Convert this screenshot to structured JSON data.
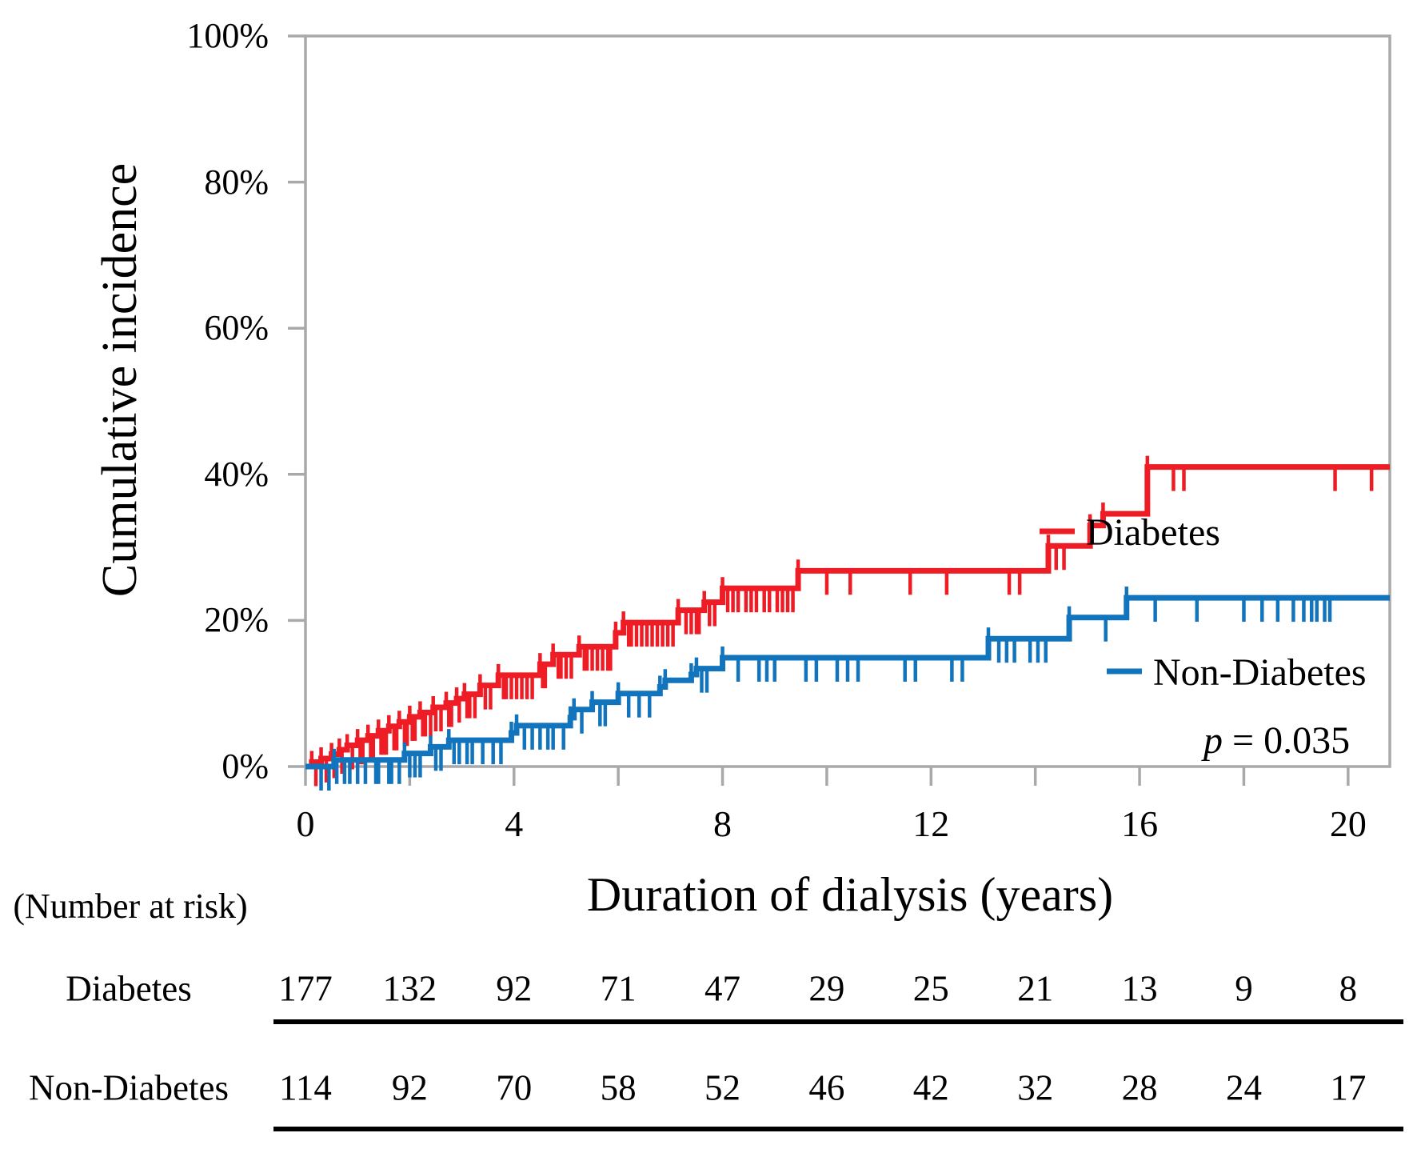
{
  "chart_data": {
    "type": "line",
    "subtype": "kaplan-meier-cumulative-incidence-step",
    "title": "",
    "xlabel": "Duration of dialysis (years)",
    "ylabel": "Cumulative incidence",
    "xlim": [
      0,
      20.8
    ],
    "ylim": [
      0,
      100
    ],
    "grid": false,
    "axis_color": "#a9a9a9",
    "x_ticks_labeled": [
      0,
      4,
      8,
      12,
      16,
      20
    ],
    "x_ticks_minor": [
      0,
      2,
      4,
      6,
      8,
      10,
      12,
      14,
      16,
      18,
      20
    ],
    "y_ticks": [
      0,
      20,
      40,
      60,
      80,
      100
    ],
    "y_tick_labels": [
      "0%",
      "20%",
      "40%",
      "60%",
      "80%",
      "100%"
    ],
    "legend_position": "inside-right",
    "p_label": "p",
    "p_value": "= 0.035",
    "series": [
      {
        "name": "Diabetes",
        "color": "#ee1c25",
        "steps": [
          [
            0,
            0
          ],
          [
            0.12,
            0.6
          ],
          [
            0.3,
            1.1
          ],
          [
            0.5,
            1.7
          ],
          [
            0.65,
            2.3
          ],
          [
            0.8,
            2.9
          ],
          [
            1.0,
            3.6
          ],
          [
            1.2,
            4.2
          ],
          [
            1.4,
            4.9
          ],
          [
            1.6,
            5.5
          ],
          [
            1.8,
            6.1
          ],
          [
            2.0,
            6.8
          ],
          [
            2.2,
            7.4
          ],
          [
            2.45,
            8.1
          ],
          [
            2.7,
            8.7
          ],
          [
            2.9,
            9.3
          ],
          [
            3.05,
            9.9
          ],
          [
            3.35,
            11.1
          ],
          [
            3.7,
            12.5
          ],
          [
            4.5,
            14.0
          ],
          [
            4.75,
            15.3
          ],
          [
            5.25,
            16.4
          ],
          [
            5.95,
            18.3
          ],
          [
            6.1,
            19.7
          ],
          [
            7.15,
            21.4
          ],
          [
            7.65,
            22.5
          ],
          [
            8.0,
            24.4
          ],
          [
            9.45,
            26.8
          ],
          [
            14.25,
            30.2
          ],
          [
            15.05,
            33.0
          ],
          [
            15.3,
            34.6
          ],
          [
            16.15,
            41.0
          ]
        ],
        "end_value": 41.0,
        "censor_times": [
          0.2,
          0.4,
          0.55,
          0.7,
          0.9,
          1.05,
          1.1,
          1.25,
          1.3,
          1.45,
          1.5,
          1.55,
          1.7,
          1.75,
          1.9,
          1.95,
          2.05,
          2.1,
          2.25,
          2.3,
          2.4,
          2.5,
          2.6,
          2.75,
          2.8,
          2.95,
          3.1,
          3.15,
          3.25,
          3.45,
          3.55,
          3.8,
          3.85,
          3.95,
          4.05,
          4.15,
          4.25,
          4.35,
          4.55,
          4.6,
          4.85,
          4.9,
          5.0,
          5.1,
          5.35,
          5.4,
          5.5,
          5.6,
          5.7,
          5.8,
          5.85,
          6.2,
          6.25,
          6.35,
          6.45,
          6.55,
          6.65,
          6.75,
          6.85,
          6.95,
          7.05,
          7.3,
          7.4,
          7.5,
          7.55,
          7.75,
          7.85,
          8.1,
          8.2,
          8.3,
          8.45,
          8.55,
          8.65,
          8.8,
          8.9,
          9.05,
          9.15,
          9.25,
          9.35,
          10.0,
          10.45,
          11.6,
          12.3,
          13.5,
          13.7,
          14.4,
          14.55,
          16.65,
          16.85,
          19.75,
          20.45
        ]
      },
      {
        "name": "Non-Diabetes",
        "color": "#1174bc",
        "steps": [
          [
            0,
            0
          ],
          [
            0.55,
            0.9
          ],
          [
            1.9,
            1.8
          ],
          [
            2.4,
            2.7
          ],
          [
            2.75,
            3.6
          ],
          [
            3.95,
            4.6
          ],
          [
            4.05,
            5.6
          ],
          [
            5.08,
            6.7
          ],
          [
            5.15,
            7.8
          ],
          [
            5.5,
            8.8
          ],
          [
            6.0,
            10.0
          ],
          [
            6.8,
            10.9
          ],
          [
            6.9,
            11.8
          ],
          [
            7.4,
            12.6
          ],
          [
            7.5,
            13.4
          ],
          [
            8.0,
            14.9
          ],
          [
            13.1,
            17.5
          ],
          [
            14.65,
            20.4
          ],
          [
            15.75,
            23.1
          ]
        ],
        "end_value": 23.1,
        "censor_times": [
          0.3,
          0.45,
          0.6,
          0.75,
          0.85,
          1.0,
          1.15,
          1.35,
          1.4,
          1.6,
          1.65,
          1.8,
          2.0,
          2.1,
          2.2,
          2.5,
          2.6,
          2.85,
          2.95,
          3.1,
          3.2,
          3.4,
          3.6,
          3.75,
          4.2,
          4.35,
          4.5,
          4.65,
          4.75,
          4.95,
          5.3,
          5.65,
          5.75,
          6.2,
          6.4,
          6.6,
          7.6,
          7.7,
          8.3,
          8.7,
          8.85,
          9.0,
          9.6,
          9.8,
          10.2,
          10.4,
          10.6,
          11.5,
          11.7,
          12.4,
          12.6,
          13.3,
          13.45,
          13.6,
          13.9,
          14.05,
          14.2,
          15.35,
          16.3,
          17.1,
          18.0,
          18.35,
          18.65,
          18.95,
          19.15,
          19.3,
          19.4,
          19.55,
          19.65
        ]
      }
    ]
  },
  "risk_table": {
    "heading": "(Number at risk)",
    "col_years": [
      0,
      2,
      4,
      6,
      8,
      10,
      12,
      14,
      16,
      18,
      20
    ],
    "rows": [
      {
        "label": "Diabetes",
        "values": [
          177,
          132,
          92,
          71,
          47,
          29,
          25,
          21,
          13,
          9,
          8
        ]
      },
      {
        "label": "Non-Diabetes",
        "values": [
          114,
          92,
          70,
          58,
          52,
          46,
          42,
          32,
          28,
          24,
          17
        ]
      }
    ]
  }
}
